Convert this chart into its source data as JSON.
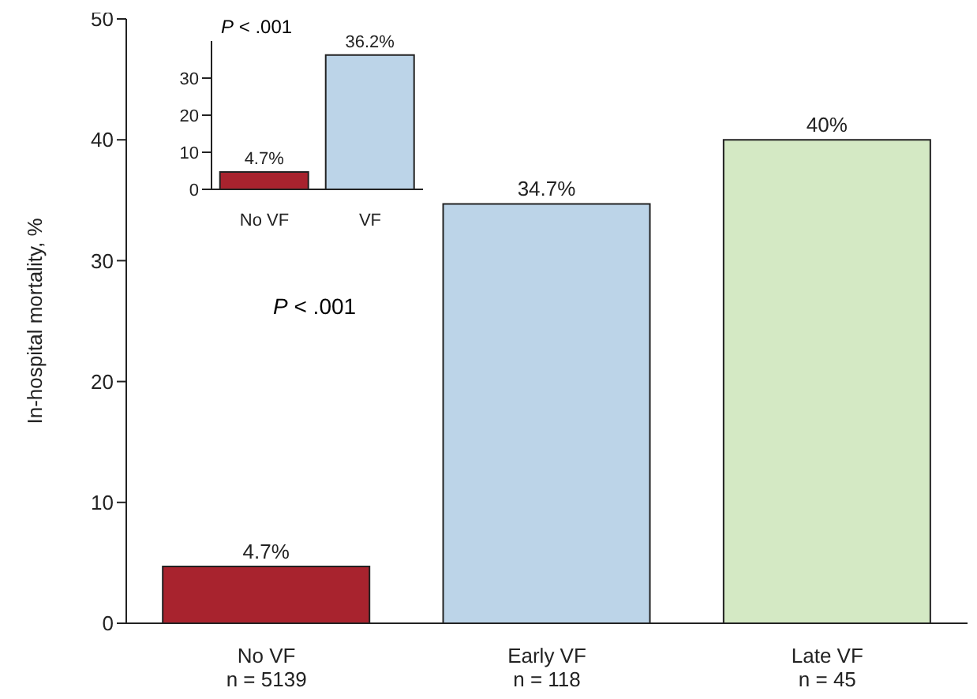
{
  "chart_data": [
    {
      "type": "bar",
      "ylabel": "In-hospital mortality, %",
      "categories": [
        "No VF\nn = 5139",
        "Early VF\nn = 118",
        "Late VF\nn = 45"
      ],
      "values": [
        4.7,
        34.7,
        40
      ],
      "colors": [
        "#a8232e",
        "#bcd4e8",
        "#d4e9c4"
      ],
      "value_labels": [
        "4.7%",
        "34.7%",
        "40%"
      ],
      "ylim": [
        0,
        50
      ],
      "yticks": [
        0,
        10,
        20,
        30,
        40,
        50
      ],
      "annotations": [
        "P < .001"
      ]
    },
    {
      "type": "bar",
      "categories": [
        "No VF",
        "VF"
      ],
      "values": [
        4.7,
        36.2
      ],
      "colors": [
        "#a8232e",
        "#bcd4e8"
      ],
      "value_labels": [
        "4.7%",
        "36.2%"
      ],
      "ylim": [
        0,
        40
      ],
      "yticks": [
        0,
        10,
        20,
        30
      ],
      "annotations": [
        "P < .001"
      ]
    }
  ]
}
